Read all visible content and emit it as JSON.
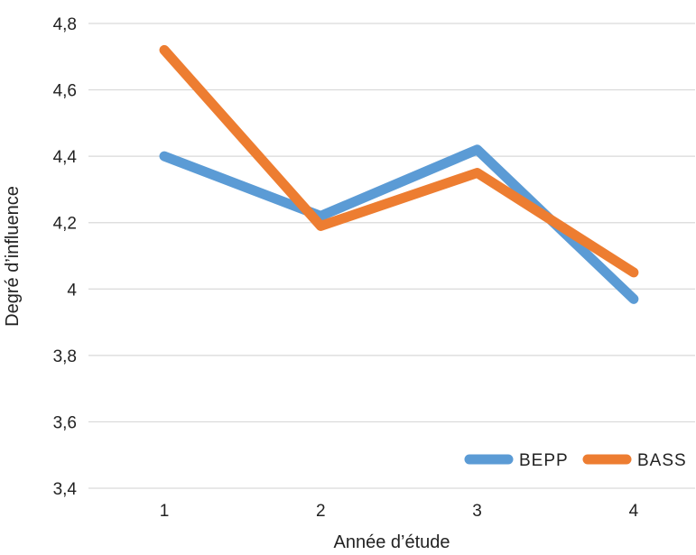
{
  "chart_data": {
    "type": "line",
    "title": "",
    "xlabel": "Année d’étude",
    "ylabel": "Degré d’influence",
    "categories": [
      "1",
      "2",
      "3",
      "4"
    ],
    "yticks": [
      "3,4",
      "3,6",
      "3,8",
      "4",
      "4,2",
      "4,4",
      "4,6",
      "4,8"
    ],
    "ylim": [
      3.4,
      4.8
    ],
    "grid": true,
    "legend_position": "bottom-right",
    "series": [
      {
        "name": "BEPP",
        "color": "#5b9bd5",
        "values": [
          4.4,
          4.22,
          4.42,
          3.97
        ]
      },
      {
        "name": "BASS",
        "color": "#ed7d31",
        "values": [
          4.72,
          4.19,
          4.35,
          4.05
        ]
      }
    ]
  }
}
